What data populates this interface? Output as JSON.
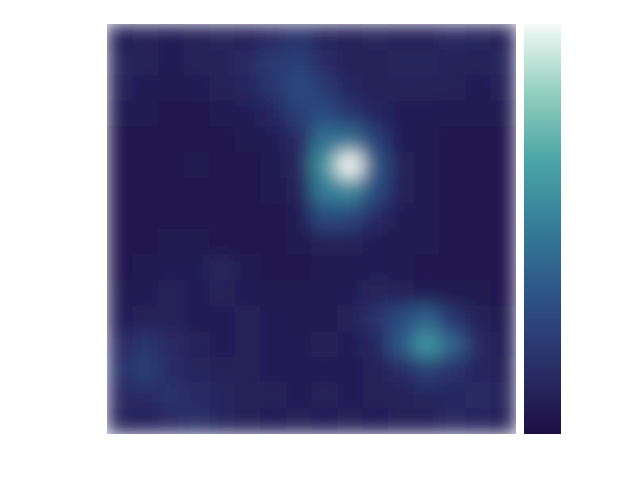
{
  "chart_data": {
    "type": "heatmap",
    "colormap": [
      "#1e0f45",
      "#2a2f68",
      "#2d5286",
      "#347b98",
      "#4aa5a6",
      "#93cfbd",
      "#f4faf7"
    ],
    "values": [
      [
        0.08,
        0.1,
        0.08,
        0.1,
        0.12,
        0.1,
        0.15,
        0.2,
        0.12,
        0.1,
        0.12,
        0.1,
        0.1,
        0.15,
        0.12,
        0.1
      ],
      [
        0.12,
        0.1,
        0.08,
        0.1,
        0.1,
        0.15,
        0.22,
        0.25,
        0.15,
        0.1,
        0.1,
        0.12,
        0.12,
        0.1,
        0.1,
        0.12
      ],
      [
        0.1,
        0.08,
        0.06,
        0.08,
        0.1,
        0.12,
        0.2,
        0.3,
        0.22,
        0.12,
        0.1,
        0.1,
        0.1,
        0.1,
        0.08,
        0.1
      ],
      [
        0.06,
        0.06,
        0.05,
        0.05,
        0.06,
        0.08,
        0.12,
        0.25,
        0.3,
        0.2,
        0.12,
        0.08,
        0.08,
        0.06,
        0.06,
        0.06
      ],
      [
        0.05,
        0.05,
        0.05,
        0.05,
        0.05,
        0.06,
        0.08,
        0.15,
        0.45,
        0.45,
        0.25,
        0.08,
        0.06,
        0.05,
        0.05,
        0.05
      ],
      [
        0.05,
        0.05,
        0.05,
        0.06,
        0.05,
        0.05,
        0.06,
        0.12,
        0.6,
        1.0,
        0.35,
        0.1,
        0.06,
        0.05,
        0.05,
        0.05
      ],
      [
        0.05,
        0.05,
        0.05,
        0.05,
        0.05,
        0.05,
        0.06,
        0.1,
        0.5,
        0.55,
        0.3,
        0.1,
        0.06,
        0.05,
        0.05,
        0.05
      ],
      [
        0.05,
        0.05,
        0.05,
        0.05,
        0.05,
        0.05,
        0.05,
        0.08,
        0.3,
        0.28,
        0.15,
        0.08,
        0.06,
        0.05,
        0.05,
        0.05
      ],
      [
        0.05,
        0.05,
        0.06,
        0.06,
        0.05,
        0.05,
        0.05,
        0.06,
        0.1,
        0.1,
        0.08,
        0.06,
        0.06,
        0.05,
        0.05,
        0.05
      ],
      [
        0.05,
        0.06,
        0.08,
        0.08,
        0.12,
        0.06,
        0.05,
        0.05,
        0.06,
        0.06,
        0.08,
        0.06,
        0.05,
        0.05,
        0.05,
        0.05
      ],
      [
        0.06,
        0.08,
        0.1,
        0.08,
        0.1,
        0.08,
        0.06,
        0.06,
        0.06,
        0.08,
        0.12,
        0.1,
        0.08,
        0.06,
        0.06,
        0.05
      ],
      [
        0.08,
        0.1,
        0.1,
        0.08,
        0.08,
        0.1,
        0.08,
        0.06,
        0.06,
        0.1,
        0.18,
        0.3,
        0.4,
        0.2,
        0.1,
        0.06
      ],
      [
        0.15,
        0.2,
        0.15,
        0.1,
        0.08,
        0.1,
        0.08,
        0.08,
        0.1,
        0.08,
        0.12,
        0.35,
        0.6,
        0.4,
        0.15,
        0.08
      ],
      [
        0.18,
        0.25,
        0.15,
        0.12,
        0.1,
        0.1,
        0.08,
        0.08,
        0.08,
        0.08,
        0.1,
        0.15,
        0.25,
        0.18,
        0.12,
        0.1
      ],
      [
        0.15,
        0.15,
        0.18,
        0.15,
        0.12,
        0.1,
        0.1,
        0.08,
        0.1,
        0.08,
        0.1,
        0.1,
        0.12,
        0.12,
        0.15,
        0.12
      ],
      [
        0.12,
        0.1,
        0.15,
        0.18,
        0.12,
        0.1,
        0.08,
        0.1,
        0.08,
        0.1,
        0.08,
        0.1,
        0.1,
        0.15,
        0.12,
        0.1
      ]
    ]
  }
}
